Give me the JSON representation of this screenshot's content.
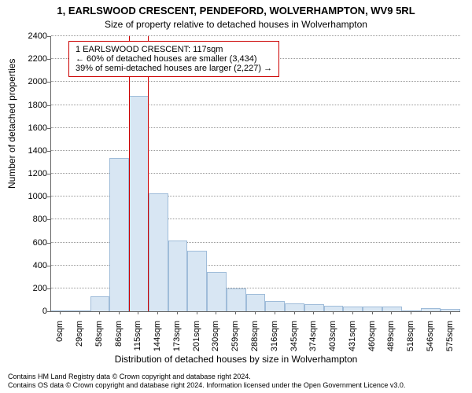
{
  "title_main": "1, EARLSWOOD CRESCENT, PENDEFORD, WOLVERHAMPTON, WV9 5RL",
  "title_sub": "Size of property relative to detached houses in Wolverhampton",
  "y_axis_label": "Number of detached properties",
  "x_axis_label": "Distribution of detached houses by size in Wolverhampton",
  "attribution_line1": "Contains HM Land Registry data © Crown copyright and database right 2024.",
  "attribution_line2": "Contains OS data © Crown copyright and database right 2024. Information licensed under the Open Government Licence v3.0.",
  "chart": {
    "type": "histogram",
    "ylim": [
      0,
      2400
    ],
    "ytick_step": 200,
    "background_color": "#ffffff",
    "grid_color": "#999999",
    "grid_style": "dotted",
    "bar_fill": "#d8e6f3",
    "bar_border": "#9fbcd9",
    "highlight_border": "#cc0000",
    "annotation_border": "#cc0000",
    "text_color": "#000000",
    "tick_fontsize": 11,
    "title_fontsize": 13,
    "label_fontsize": 12,
    "attribution_fontsize": 9,
    "annotation_fontsize": 11,
    "bar_width_ratio": 1.0,
    "x_tick_labels": [
      "0sqm",
      "29sqm",
      "58sqm",
      "86sqm",
      "115sqm",
      "144sqm",
      "173sqm",
      "201sqm",
      "230sqm",
      "259sqm",
      "288sqm",
      "316sqm",
      "345sqm",
      "374sqm",
      "403sqm",
      "431sqm",
      "460sqm",
      "489sqm",
      "518sqm",
      "546sqm",
      "575sqm"
    ],
    "values": [
      0,
      2,
      130,
      1340,
      1880,
      1030,
      620,
      530,
      340,
      200,
      150,
      90,
      70,
      60,
      50,
      40,
      40,
      40,
      10,
      30,
      20
    ],
    "highlight_bin_index": 4,
    "annotation_lines": [
      "1 EARLSWOOD CRESCENT: 117sqm",
      "← 60% of detached houses are smaller (3,434)",
      "39% of semi-detached houses are larger (2,227) →"
    ]
  }
}
